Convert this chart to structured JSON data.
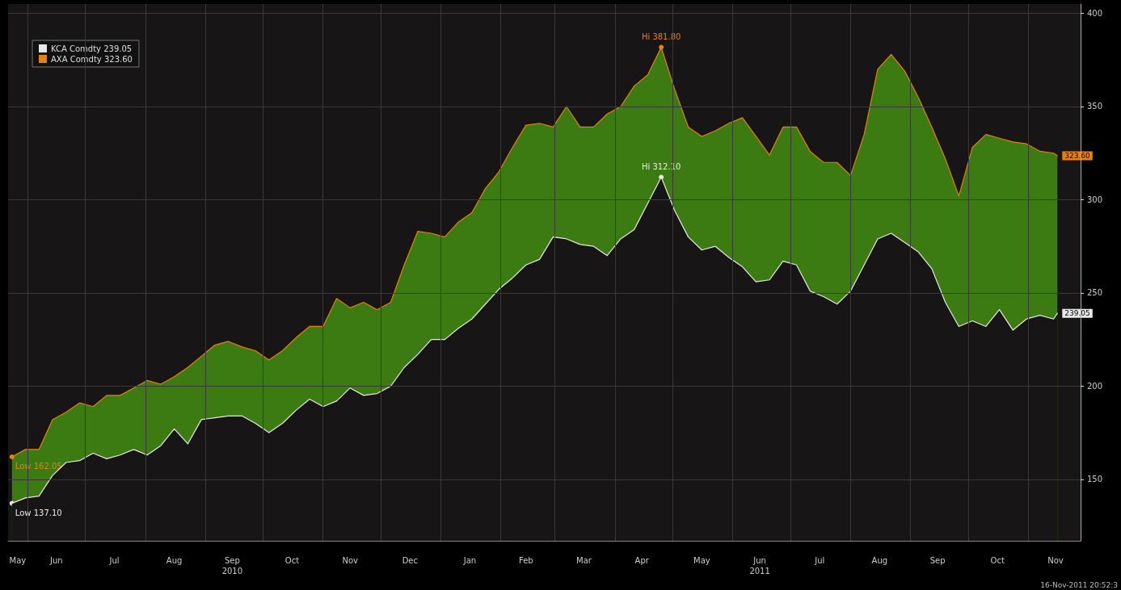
{
  "chart_data": {
    "type": "area",
    "annotations": [
      {
        "text": "Hi 381.80",
        "x": "2011-04-25",
        "y": 381.8
      },
      {
        "text": "Hi 312.10",
        "x": "2011-04-25",
        "y": 312.1
      },
      {
        "text": "Low 162.05",
        "x": "2010-05-24",
        "y": 162.05
      },
      {
        "text": "Low 137.10",
        "x": "2010-05-24",
        "y": 137.1
      },
      "16-Nov-2011 20:52:3"
    ],
    "x": [
      "2010-05-24",
      "2010-05-31",
      "2010-06-07",
      "2010-06-14",
      "2010-06-21",
      "2010-06-28",
      "2010-07-05",
      "2010-07-12",
      "2010-07-19",
      "2010-07-26",
      "2010-08-02",
      "2010-08-09",
      "2010-08-16",
      "2010-08-23",
      "2010-08-30",
      "2010-09-06",
      "2010-09-13",
      "2010-09-20",
      "2010-09-27",
      "2010-10-04",
      "2010-10-11",
      "2010-10-18",
      "2010-10-25",
      "2010-11-01",
      "2010-11-08",
      "2010-11-15",
      "2010-11-22",
      "2010-11-29",
      "2010-12-06",
      "2010-12-13",
      "2010-12-20",
      "2010-12-27",
      "2011-01-03",
      "2011-01-10",
      "2011-01-17",
      "2011-01-24",
      "2011-01-31",
      "2011-02-07",
      "2011-02-14",
      "2011-02-21",
      "2011-02-28",
      "2011-03-07",
      "2011-03-14",
      "2011-03-21",
      "2011-03-28",
      "2011-04-04",
      "2011-04-11",
      "2011-04-18",
      "2011-04-25",
      "2011-05-02",
      "2011-05-09",
      "2011-05-16",
      "2011-05-23",
      "2011-05-30",
      "2011-06-06",
      "2011-06-13",
      "2011-06-20",
      "2011-06-27",
      "2011-07-04",
      "2011-07-11",
      "2011-07-18",
      "2011-07-25",
      "2011-08-01",
      "2011-08-08",
      "2011-08-15",
      "2011-08-22",
      "2011-08-29",
      "2011-09-05",
      "2011-09-12",
      "2011-09-19",
      "2011-09-26",
      "2011-10-03",
      "2011-10-10",
      "2011-10-17",
      "2011-10-24",
      "2011-10-31",
      "2011-11-07",
      "2011-11-14",
      "2011-11-16"
    ],
    "series": [
      {
        "name": "KCA Comdty 239.05",
        "color": "#e8e8e8",
        "value_labels": [
          null,
          null,
          null,
          null,
          null,
          null,
          null,
          null,
          null,
          null,
          null,
          null,
          null,
          null,
          null,
          null,
          null,
          null,
          null,
          null,
          null,
          null,
          null,
          null,
          null,
          null,
          null,
          null,
          null,
          null,
          null,
          null,
          null,
          null,
          null,
          null,
          null,
          null,
          null,
          null,
          null,
          null,
          null,
          null,
          null,
          null,
          null,
          null,
          null,
          null,
          null,
          null,
          null,
          null,
          null,
          null,
          null,
          null,
          null,
          null,
          null,
          null,
          null,
          null,
          null,
          null,
          null,
          null,
          null,
          null,
          null,
          null,
          null,
          null,
          null,
          null,
          null,
          null,
          "239.05"
        ],
        "values": [
          137.1,
          140,
          141,
          152,
          159,
          160,
          164,
          161,
          163,
          166,
          163,
          168,
          177,
          169,
          182,
          183,
          184,
          184,
          180,
          175,
          180,
          187,
          193,
          189,
          192,
          199,
          195,
          196,
          200,
          210,
          217,
          225,
          225,
          231,
          236,
          244,
          252,
          258,
          265,
          268,
          280,
          279,
          276,
          275,
          270,
          279,
          284,
          298,
          312.1,
          294,
          280,
          273,
          275,
          269,
          264,
          256,
          257,
          267,
          265,
          251,
          248,
          244,
          251,
          265,
          279,
          282,
          277,
          272,
          263,
          245,
          232,
          235,
          232,
          241,
          230,
          236,
          238,
          236,
          239.05
        ]
      },
      {
        "name": "AXA Comdty 323.60",
        "color": "#e8820c",
        "value_labels": [
          null,
          null,
          null,
          null,
          null,
          null,
          null,
          null,
          null,
          null,
          null,
          null,
          null,
          null,
          null,
          null,
          null,
          null,
          null,
          null,
          null,
          null,
          null,
          null,
          null,
          null,
          null,
          null,
          null,
          null,
          null,
          null,
          null,
          null,
          null,
          null,
          null,
          null,
          null,
          null,
          null,
          null,
          null,
          null,
          null,
          null,
          null,
          null,
          null,
          null,
          null,
          null,
          null,
          null,
          null,
          null,
          null,
          null,
          null,
          null,
          null,
          null,
          null,
          null,
          null,
          null,
          null,
          null,
          null,
          null,
          null,
          null,
          null,
          null,
          null,
          null,
          null,
          null,
          "323.60"
        ],
        "values": [
          162.05,
          166,
          166,
          182,
          186,
          191,
          189,
          195,
          195,
          199,
          203,
          201,
          205,
          210,
          216,
          222,
          224,
          221,
          219,
          214,
          219,
          226,
          232,
          232,
          247,
          242,
          245,
          241,
          245,
          265,
          283,
          282,
          280,
          288,
          293,
          306,
          315,
          328,
          340,
          341,
          339,
          350,
          339,
          339,
          346,
          350,
          361,
          367,
          381.8,
          359,
          339,
          334,
          337,
          341,
          344,
          334,
          324,
          339,
          339,
          326,
          320,
          320,
          313,
          335,
          370,
          378,
          369,
          355,
          339,
          322,
          302,
          328,
          335,
          333,
          331,
          330,
          326,
          325,
          323.6
        ]
      }
    ],
    "xlim": [
      "2010-05-22",
      "2011-11-28"
    ],
    "xticks": [
      {
        "value": "2010-05-27",
        "label": "May"
      },
      {
        "value": "2010-06-16",
        "label": "Jun"
      },
      {
        "value": "2010-07-16",
        "label": "Jul"
      },
      {
        "value": "2010-08-16",
        "label": "Aug"
      },
      {
        "value": "2010-09-15",
        "label": "Sep\n2010"
      },
      {
        "value": "2010-10-16",
        "label": "Oct"
      },
      {
        "value": "2010-11-15",
        "label": "Nov"
      },
      {
        "value": "2010-12-16",
        "label": "Dec"
      },
      {
        "value": "2011-01-16",
        "label": "Jan"
      },
      {
        "value": "2011-02-14",
        "label": "Feb"
      },
      {
        "value": "2011-03-16",
        "label": "Mar"
      },
      {
        "value": "2011-04-15",
        "label": "Apr"
      },
      {
        "value": "2011-05-16",
        "label": "May"
      },
      {
        "value": "2011-06-15",
        "label": "Jun\n2011"
      },
      {
        "value": "2011-07-16",
        "label": "Jul"
      },
      {
        "value": "2011-08-16",
        "label": "Aug"
      },
      {
        "value": "2011-09-15",
        "label": "Sep"
      },
      {
        "value": "2011-10-16",
        "label": "Oct"
      },
      {
        "value": "2011-11-15",
        "label": "Nov"
      },
      {
        "value": "2010-06-01",
        "label": null
      },
      {
        "value": "2010-07-01",
        "label": null
      },
      {
        "value": "2010-08-01",
        "label": null
      },
      {
        "value": "2010-09-01",
        "label": null
      },
      {
        "value": "2010-10-01",
        "label": null
      },
      {
        "value": "2010-11-01",
        "label": null
      },
      {
        "value": "2010-12-01",
        "label": null
      },
      {
        "value": "2011-01-01",
        "label": null
      },
      {
        "value": "2011-02-01",
        "label": null
      },
      {
        "value": "2011-03-01",
        "label": null
      },
      {
        "value": "2011-04-01",
        "label": null
      },
      {
        "value": "2011-05-01",
        "label": null
      },
      {
        "value": "2011-06-01",
        "label": null
      },
      {
        "value": "2011-07-01",
        "label": null
      },
      {
        "value": "2011-08-01",
        "label": null
      },
      {
        "value": "2011-09-01",
        "label": null
      },
      {
        "value": "2011-10-01",
        "label": null
      },
      {
        "value": "2011-11-01",
        "label": null
      }
    ],
    "ylim": [
      117,
      405
    ],
    "yticks": [
      150,
      200,
      250,
      300,
      350,
      400
    ],
    "grid": true,
    "legend": "top left",
    "marker": "none",
    "line_style": "solid"
  }
}
